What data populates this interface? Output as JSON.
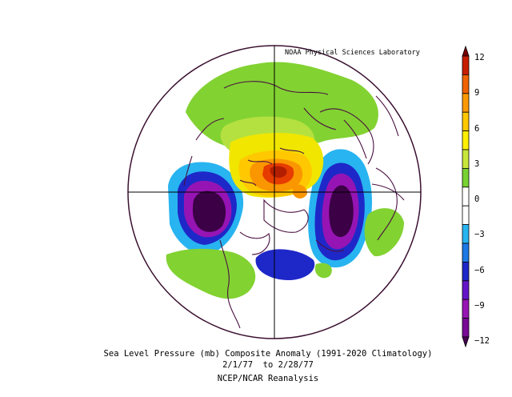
{
  "credit": "NOAA Physical Sciences Laboratory",
  "caption": {
    "line1": "Sea Level Pressure (mb) Composite Anomaly (1991-2020 Climatology)",
    "line2": "2/1/77  to 2/28/77",
    "line3": "NCEP/NCAR Reanalysis"
  },
  "colorbar": {
    "ticks": [
      "12",
      "9",
      "6",
      "3",
      "0",
      "−3",
      "−6",
      "−9",
      "−12"
    ],
    "colors": [
      "#780000",
      "#c81e00",
      "#f06400",
      "#fa9a00",
      "#ffc800",
      "#fff000",
      "#c8e63c",
      "#78d232",
      "#ffffff",
      "#ffffff",
      "#28b4f0",
      "#1e78e6",
      "#1e28c8",
      "#6414c8",
      "#9614b4",
      "#780a96",
      "#460050"
    ]
  },
  "map": {
    "projection": "north polar stereographic",
    "colors": {
      "coast": "#4a1040",
      "grid": "#000000",
      "green": "#82d232",
      "lightgreen": "#b4e140",
      "yellow": "#f0e600",
      "gold": "#ffc800",
      "orange": "#fa9600",
      "red": "#e63c00",
      "darkred": "#b41e00",
      "cyan": "#28b4f0",
      "blue": "#1e78e6",
      "indigo": "#1e28c8",
      "violet": "#6414c8",
      "purple": "#9614b4",
      "darkpurple": "#3c0046"
    }
  }
}
